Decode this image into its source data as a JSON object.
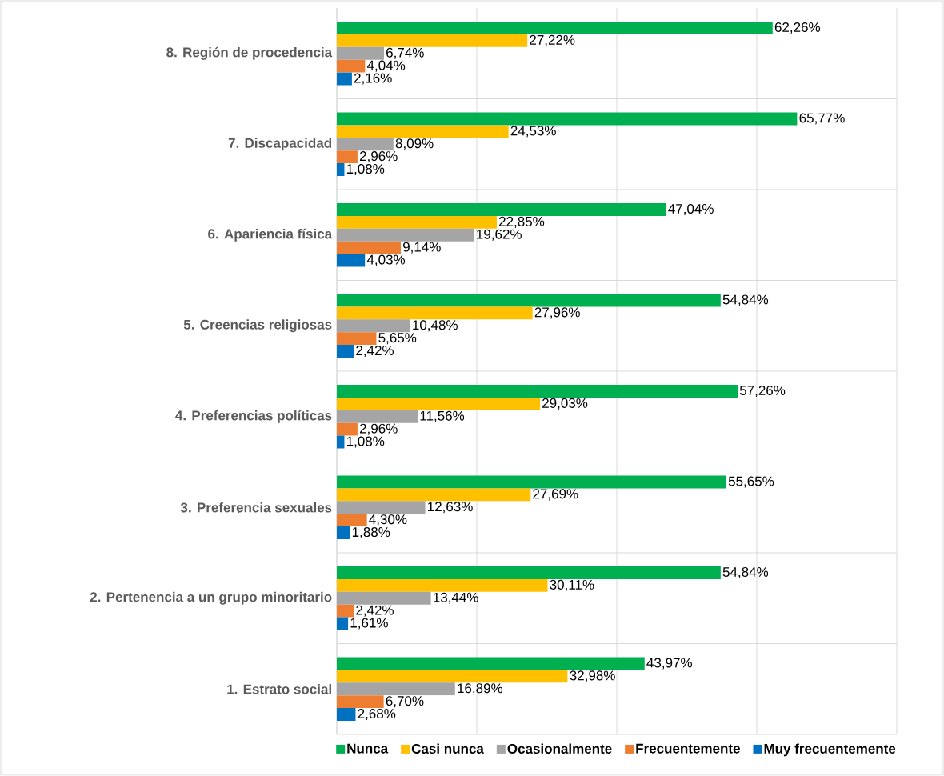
{
  "chart_data": {
    "type": "bar",
    "orientation": "horizontal",
    "categories": [
      "8. Región de procedencia",
      "7. Discapacidad",
      "6. Apariencia física",
      "5. Creencias religiosas",
      "4. Preferencias políticas",
      "3. Preferencia sexuales",
      "2. Pertenencia a un grupo minoritario",
      "1. Estrato social"
    ],
    "series": [
      {
        "name": "Nunca",
        "color": "#00b050",
        "values": [
          62.26,
          65.77,
          47.04,
          54.84,
          57.26,
          55.65,
          54.84,
          43.97
        ],
        "value_labels": [
          "62,26%",
          "65,77%",
          "47,04%",
          "54,84%",
          "57,26%",
          "55,65%",
          "54,84%",
          "43,97%"
        ]
      },
      {
        "name": "Casi nunca",
        "color": "#ffc000",
        "values": [
          27.22,
          24.53,
          22.85,
          27.96,
          29.03,
          27.69,
          30.11,
          32.98
        ],
        "value_labels": [
          "27,22%",
          "24,53%",
          "22,85%",
          "27,96%",
          "29,03%",
          "27,69%",
          "30,11%",
          "32,98%"
        ]
      },
      {
        "name": "Ocasionalmente",
        "color": "#a5a5a5",
        "values": [
          6.74,
          8.09,
          19.62,
          10.48,
          11.56,
          12.63,
          13.44,
          16.89
        ],
        "value_labels": [
          "6,74%",
          "8,09%",
          "19,62%",
          "10,48%",
          "11,56%",
          "12,63%",
          "13,44%",
          "16,89%"
        ]
      },
      {
        "name": "Frecuentemente",
        "color": "#ed7d31",
        "values": [
          4.04,
          2.96,
          9.14,
          5.65,
          2.96,
          4.3,
          2.42,
          6.7
        ],
        "value_labels": [
          "4,04%",
          "2,96%",
          "9,14%",
          "5,65%",
          "2,96%",
          "4,30%",
          "2,42%",
          "6,70%"
        ]
      },
      {
        "name": "Muy frecuentemente",
        "color": "#0070c0",
        "values": [
          2.16,
          1.08,
          4.03,
          2.42,
          1.08,
          1.88,
          1.61,
          2.68
        ],
        "value_labels": [
          "2,16%",
          "1,08%",
          "4,03%",
          "2,42%",
          "1,08%",
          "1,88%",
          "1,61%",
          "2,68%"
        ]
      }
    ],
    "xlim": [
      0,
      80
    ],
    "xticks": [
      {
        "value": 0,
        "label": null
      },
      {
        "value": 20,
        "label": null
      },
      {
        "value": 40,
        "label": null
      },
      {
        "value": 60,
        "label": null
      },
      {
        "value": 80,
        "label": null
      }
    ],
    "tick_labels": "y",
    "grid": true,
    "legend": "bottom"
  }
}
